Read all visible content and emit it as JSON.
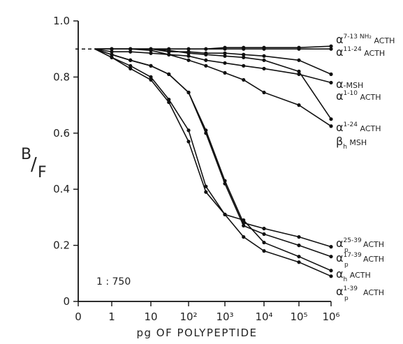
{
  "chart_data": {
    "type": "line",
    "xlabel": "pg OF POLYPEPTIDE",
    "ylabel_main": "B",
    "ylabel_sub": "F",
    "ylim": [
      0,
      1.0
    ],
    "x_ticks": [
      "0",
      "1",
      "10",
      "10²",
      "10³",
      "10⁴",
      "10⁵",
      "10⁶"
    ],
    "y_ticks": [
      "0",
      "0.2",
      "0.4",
      "0.6",
      "0.8",
      "1.0"
    ],
    "x_scale": "log",
    "annotation": "1 : 750",
    "x": [
      0.35,
      1,
      3,
      10,
      30,
      100,
      300,
      1000,
      3000,
      10000,
      100000,
      1000000
    ],
    "series": [
      {
        "name": "α7-13 NH2 ACTH",
        "values": [
          0.9,
          0.9,
          0.9,
          0.9,
          0.9,
          0.9,
          0.9,
          0.905,
          0.905,
          0.905,
          0.905,
          0.91
        ]
      },
      {
        "name": "α11-24 ACTH",
        "values": [
          0.9,
          0.9,
          0.9,
          0.9,
          0.9,
          0.9,
          0.9,
          0.9,
          0.9,
          0.9,
          0.9,
          0.9
        ]
      },
      {
        "name": "α-MSH",
        "values": [
          0.9,
          0.9,
          0.9,
          0.9,
          0.89,
          0.89,
          0.885,
          0.885,
          0.88,
          0.875,
          0.86,
          0.81
        ]
      },
      {
        "name": "α1-10 ACTH",
        "values": [
          0.9,
          0.89,
          0.89,
          0.885,
          0.88,
          0.875,
          0.86,
          0.85,
          0.84,
          0.83,
          0.81,
          0.78
        ]
      },
      {
        "name": "α1-24 ACTH",
        "values": [
          0.9,
          0.9,
          0.9,
          0.9,
          0.895,
          0.885,
          0.88,
          0.875,
          0.87,
          0.86,
          0.82,
          0.65
        ]
      },
      {
        "name": "βh MSH",
        "values": [
          0.9,
          0.9,
          0.9,
          0.895,
          0.88,
          0.86,
          0.84,
          0.815,
          0.79,
          0.745,
          0.7,
          0.625
        ]
      },
      {
        "name": "αp25-39 ACTH",
        "values": [
          0.9,
          0.88,
          0.86,
          0.84,
          0.81,
          0.745,
          0.61,
          0.43,
          0.28,
          0.26,
          0.23,
          0.195
        ]
      },
      {
        "name": "αp17-39 ACTH",
        "values": [
          0.9,
          0.88,
          0.86,
          0.84,
          0.81,
          0.745,
          0.6,
          0.42,
          0.27,
          0.24,
          0.2,
          0.16
        ]
      },
      {
        "name": "αh ACTH",
        "values": [
          0.9,
          0.87,
          0.84,
          0.8,
          0.72,
          0.61,
          0.41,
          0.31,
          0.29,
          0.21,
          0.16,
          0.11
        ]
      },
      {
        "name": "αp1-39 ACTH",
        "values": [
          0.9,
          0.87,
          0.83,
          0.79,
          0.71,
          0.57,
          0.39,
          0.31,
          0.23,
          0.18,
          0.14,
          0.09
        ]
      }
    ]
  }
}
